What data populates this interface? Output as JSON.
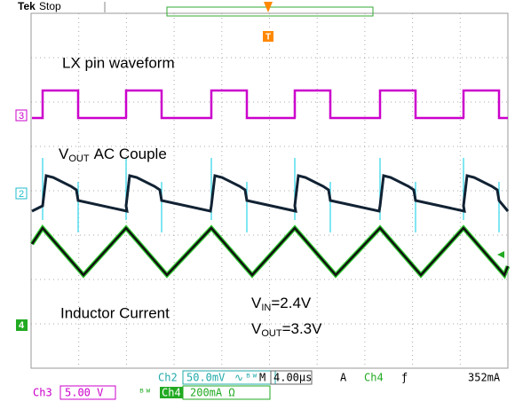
{
  "header": {
    "brand": "Tek",
    "state": "Stop",
    "trigger_marker": "T"
  },
  "labels": {
    "lx": "LX pin waveform",
    "vout_ac": {
      "v": "V",
      "sub": "OUT",
      "rest": "AC Couple"
    },
    "inductor": "Inductor Current",
    "vin": {
      "v": "V",
      "sub": "IN",
      "rest": "=2.4V"
    },
    "vout": {
      "v": "V",
      "sub": "OUT",
      "rest": "=3.3V"
    }
  },
  "markers": {
    "ch3": "3",
    "ch2": "2",
    "ch4": "4"
  },
  "status": {
    "row1": {
      "ch2": "Ch2",
      "ch2_scale": "50.0mV",
      "ch2_coupling": "∿",
      "bw": "ᴮᵂ",
      "time_label": "M",
      "time_scale": "4.00µs",
      "acq": "A",
      "trig_src": "Ch4",
      "trig_slope": "ƒ",
      "trig_level": "352mA"
    },
    "row2": {
      "ch3": "Ch3",
      "ch3_scale": "5.00 V",
      "bw": "ᴮᵂ",
      "ch4": "Ch4",
      "ch4_scale": "200mA Ω"
    }
  }
}
